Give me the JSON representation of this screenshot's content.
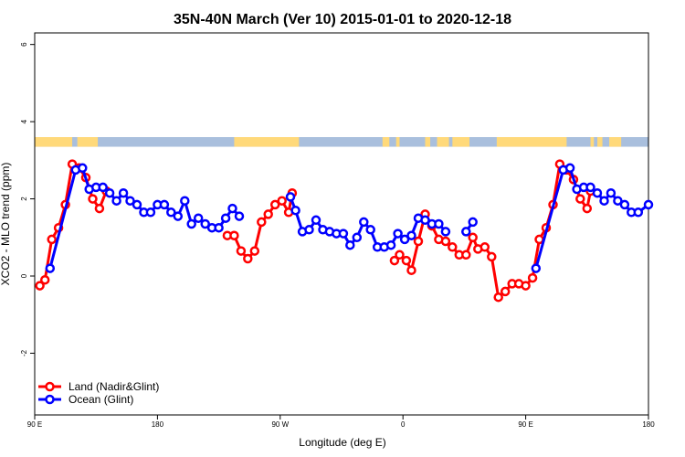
{
  "chart_data": {
    "type": "line",
    "title": "35N-40N March (Ver 10)   2015-01-01 to 2020-12-18",
    "xlabel": "Longitude (deg E)",
    "ylabel": "XCO2 - MLO trend (ppm)",
    "xlim": [
      90,
      450
    ],
    "ylim": [
      -3.6,
      6.3
    ],
    "x_ticks": [
      {
        "value": 90,
        "label": "90 E"
      },
      {
        "value": 162,
        "label": "180"
      },
      {
        "value": 234,
        "label": "90 W"
      },
      {
        "value": 306,
        "label": "0"
      },
      {
        "value": 378,
        "label": "90 E"
      },
      {
        "value": 450,
        "label": "180"
      }
    ],
    "y_ticks": [
      {
        "value": -2,
        "label": "-2"
      },
      {
        "value": 0,
        "label": "0"
      },
      {
        "value": 2,
        "label": "2"
      },
      {
        "value": 4,
        "label": "4"
      },
      {
        "value": 6,
        "label": "6"
      }
    ],
    "legend": {
      "position": "bottom-left"
    },
    "land_ocean_strip": {
      "y_range": [
        3.35,
        3.6
      ],
      "land_color": "#FFD97A",
      "ocean_color": "#A9BFDD",
      "land_segments": [
        [
          90,
          112
        ],
        [
          115,
          127
        ],
        [
          207,
          245
        ],
        [
          294,
          298
        ],
        [
          302,
          304
        ],
        [
          319,
          322
        ],
        [
          326,
          333
        ],
        [
          335,
          345
        ],
        [
          361,
          402
        ],
        [
          416,
          418
        ],
        [
          420,
          423
        ],
        [
          427,
          434
        ]
      ]
    },
    "series": [
      {
        "name": "Land (Nadir&Glint)",
        "color": "#FF0000",
        "segments": [
          [
            [
              93,
              -0.25
            ],
            [
              96,
              -0.1
            ],
            [
              100,
              0.95
            ],
            [
              104,
              1.25
            ],
            [
              108,
              1.85
            ],
            [
              112,
              2.9
            ],
            [
              116,
              2.8
            ],
            [
              120,
              2.55
            ],
            [
              124,
              2.0
            ],
            [
              128,
              1.75
            ],
            [
              132,
              2.2
            ]
          ],
          [
            [
              203,
              1.05
            ],
            [
              207,
              1.05
            ],
            [
              211,
              0.65
            ],
            [
              215,
              0.45
            ],
            [
              219,
              0.65
            ],
            [
              223,
              1.4
            ],
            [
              227,
              1.6
            ],
            [
              231,
              1.85
            ],
            [
              235,
              1.95
            ],
            [
              239,
              1.65
            ],
            [
              241,
              2.15
            ]
          ],
          [
            [
              301,
              0.4
            ],
            [
              304,
              0.55
            ],
            [
              308,
              0.4
            ],
            [
              311,
              0.15
            ],
            [
              315,
              0.9
            ],
            [
              319,
              1.6
            ],
            [
              323,
              1.3
            ],
            [
              327,
              0.95
            ],
            [
              331,
              0.9
            ],
            [
              335,
              0.75
            ],
            [
              339,
              0.55
            ],
            [
              343,
              0.55
            ],
            [
              347,
              1.0
            ],
            [
              350,
              0.7
            ],
            [
              354,
              0.75
            ],
            [
              358,
              0.5
            ],
            [
              362,
              -0.55
            ],
            [
              366,
              -0.4
            ],
            [
              370,
              -0.2
            ],
            [
              374,
              -0.2
            ],
            [
              378,
              -0.25
            ],
            [
              382,
              -0.05
            ],
            [
              386,
              0.95
            ],
            [
              390,
              1.25
            ],
            [
              394,
              1.85
            ],
            [
              398,
              2.9
            ],
            [
              402,
              2.75
            ],
            [
              406,
              2.5
            ],
            [
              410,
              2.0
            ],
            [
              414,
              1.75
            ],
            [
              416,
              2.2
            ]
          ]
        ]
      },
      {
        "name": "Ocean (Glint)",
        "color": "#0000FF",
        "segments": [
          [
            [
              99,
              0.2
            ],
            [
              114,
              2.75
            ],
            [
              118,
              2.8
            ],
            [
              122,
              2.25
            ],
            [
              126,
              2.3
            ],
            [
              130,
              2.3
            ],
            [
              134,
              2.15
            ],
            [
              138,
              1.95
            ],
            [
              142,
              2.15
            ],
            [
              146,
              1.95
            ],
            [
              150,
              1.85
            ],
            [
              154,
              1.65
            ],
            [
              158,
              1.65
            ],
            [
              162,
              1.85
            ],
            [
              166,
              1.85
            ],
            [
              170,
              1.65
            ],
            [
              174,
              1.55
            ],
            [
              178,
              1.95
            ],
            [
              182,
              1.35
            ],
            [
              186,
              1.5
            ],
            [
              190,
              1.35
            ],
            [
              194,
              1.25
            ],
            [
              198,
              1.25
            ],
            [
              202,
              1.5
            ],
            [
              206,
              1.75
            ],
            [
              210,
              1.55
            ]
          ],
          [
            [
              240,
              2.05
            ],
            [
              243,
              1.7
            ],
            [
              247,
              1.15
            ],
            [
              251,
              1.2
            ],
            [
              255,
              1.45
            ],
            [
              259,
              1.2
            ],
            [
              263,
              1.15
            ],
            [
              267,
              1.1
            ],
            [
              271,
              1.1
            ],
            [
              275,
              0.8
            ],
            [
              279,
              1.0
            ],
            [
              283,
              1.4
            ],
            [
              287,
              1.2
            ],
            [
              291,
              0.75
            ],
            [
              295,
              0.75
            ],
            [
              299,
              0.8
            ],
            [
              303,
              1.1
            ],
            [
              307,
              0.95
            ],
            [
              311,
              1.05
            ],
            [
              315,
              1.5
            ],
            [
              319,
              1.45
            ],
            [
              323,
              1.35
            ],
            [
              327,
              1.35
            ],
            [
              331,
              1.15
            ]
          ],
          [
            [
              343,
              1.15
            ],
            [
              347,
              1.4
            ]
          ],
          [
            [
              384,
              0.2
            ],
            [
              400,
              2.75
            ],
            [
              404,
              2.8
            ],
            [
              408,
              2.25
            ],
            [
              412,
              2.3
            ],
            [
              416,
              2.3
            ],
            [
              420,
              2.15
            ],
            [
              424,
              1.95
            ],
            [
              428,
              2.15
            ],
            [
              432,
              1.95
            ],
            [
              436,
              1.85
            ],
            [
              440,
              1.65
            ],
            [
              444,
              1.65
            ],
            [
              450,
              1.85
            ]
          ]
        ]
      }
    ]
  }
}
